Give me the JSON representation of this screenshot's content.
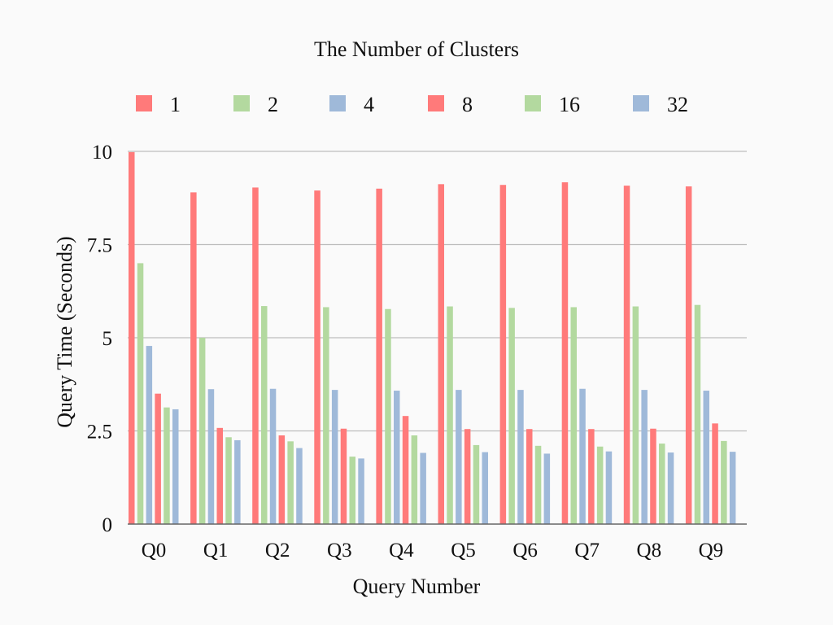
{
  "chart_data": {
    "type": "bar",
    "title": "The Number of Clusters",
    "xlabel": "Query Number",
    "ylabel": "Query Time (Seconds)",
    "ylim": [
      0,
      10
    ],
    "yticks": [
      0,
      2.5,
      5,
      7.5,
      10
    ],
    "ytick_labels": [
      "0",
      "2.5",
      "5",
      "7.5",
      "10"
    ],
    "grid": true,
    "legend_position": "top",
    "categories": [
      "Q0",
      "Q1",
      "Q2",
      "Q3",
      "Q4",
      "Q5",
      "Q6",
      "Q7",
      "Q8",
      "Q9"
    ],
    "series": [
      {
        "name": "1",
        "color": "#ff7a7a",
        "values": [
          9.98,
          8.9,
          9.03,
          8.95,
          9.0,
          9.12,
          9.1,
          9.17,
          9.08,
          9.06
        ]
      },
      {
        "name": "2",
        "color": "#b3d99f",
        "values": [
          7.0,
          5.0,
          5.85,
          5.82,
          5.77,
          5.84,
          5.8,
          5.82,
          5.84,
          5.88
        ]
      },
      {
        "name": "4",
        "color": "#9fb9d9",
        "values": [
          4.78,
          3.62,
          3.63,
          3.6,
          3.58,
          3.6,
          3.6,
          3.63,
          3.6,
          3.58
        ]
      },
      {
        "name": "8",
        "color": "#ff7a7a",
        "values": [
          3.5,
          2.58,
          2.38,
          2.56,
          2.9,
          2.55,
          2.55,
          2.55,
          2.56,
          2.7
        ]
      },
      {
        "name": "16",
        "color": "#b3d99f",
        "values": [
          3.13,
          2.33,
          2.22,
          1.81,
          2.38,
          2.12,
          2.1,
          2.08,
          2.16,
          2.23
        ]
      },
      {
        "name": "32",
        "color": "#9fb9d9",
        "values": [
          3.08,
          2.25,
          2.04,
          1.76,
          1.91,
          1.93,
          1.89,
          1.95,
          1.92,
          1.94
        ]
      }
    ]
  }
}
